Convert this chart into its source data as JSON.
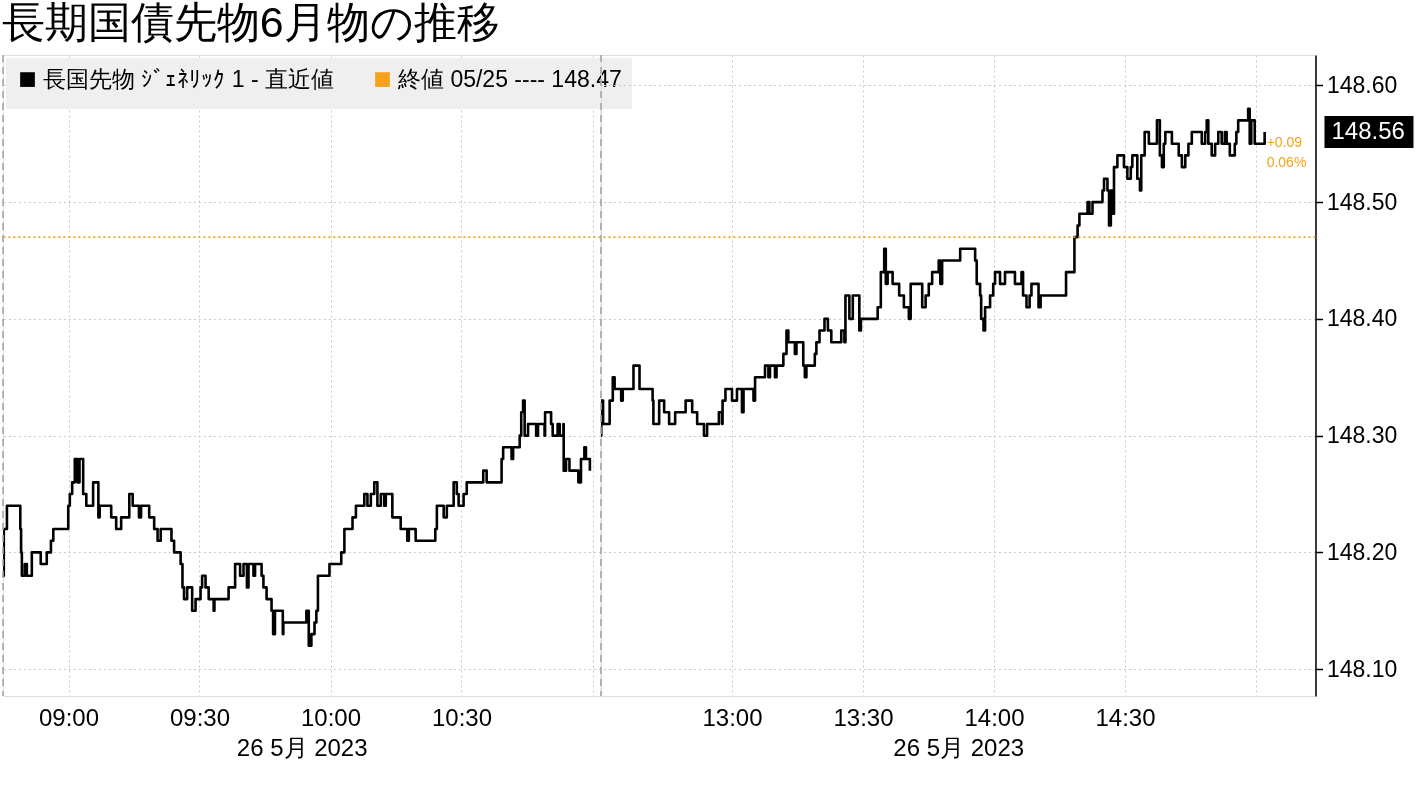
{
  "chart_data": [
    {
      "type": "step",
      "title": "長期国債先物6月物の推移",
      "xlabel": "26 5月 2023",
      "xlim": [
        8.75,
        11.03
      ],
      "xticks": [
        {
          "value": 9,
          "label": "09:00"
        },
        {
          "value": 9.5,
          "label": "09:30"
        },
        {
          "value": 10,
          "label": "10:00"
        },
        {
          "value": 10.5,
          "label": "10:30"
        },
        {
          "value": 11,
          "label": null
        }
      ],
      "ylim": [
        148.077,
        148.626
      ],
      "yticks": [
        148.1,
        148.2,
        148.3,
        148.4,
        148.5,
        148.6
      ],
      "tick_labels": "x",
      "grid": true,
      "legend": "top left",
      "line_style": "solid",
      "series": [
        {
          "name": "長国先物 ｼﾞｪﾈﾘｯｸ 1 - 直近値",
          "color": "#000000",
          "x": [
            8.75,
            8.753,
            8.765,
            8.816,
            8.819,
            8.822,
            8.833,
            8.841,
            8.86,
            8.894,
            8.917,
            8.933,
            8.942,
            8.999,
            9.005,
            9.014,
            9.024,
            9.034,
            9.042,
            9.056,
            9.068,
            9.094,
            9.114,
            9.119,
            9.163,
            9.182,
            9.201,
            9.232,
            9.245,
            9.269,
            9.277,
            9.308,
            9.327,
            9.34,
            9.352,
            9.393,
            9.403,
            9.428,
            9.435,
            9.441,
            9.453,
            9.472,
            9.485,
            9.504,
            9.51,
            9.523,
            9.535,
            9.554,
            9.557,
            9.611,
            9.636,
            9.655,
            9.668,
            9.681,
            9.687,
            9.706,
            9.712,
            9.737,
            9.744,
            9.756,
            9.775,
            9.781,
            9.788,
            9.818,
            9.82,
            9.908,
            9.917,
            9.927,
            9.939,
            9.946,
            9.952,
            9.996,
            10.041,
            10.053,
            10.084,
            10.097,
            10.129,
            10.141,
            10.154,
            10.167,
            10.179,
            10.192,
            10.205,
            10.211,
            10.236,
            10.268,
            10.293,
            10.299,
            10.325,
            10.4,
            10.406,
            10.432,
            10.444,
            10.47,
            10.482,
            10.489,
            10.508,
            10.52,
            10.583,
            10.596,
            10.653,
            10.659,
            10.691,
            10.697,
            10.722,
            10.728,
            10.735,
            10.741,
            10.754,
            10.785,
            10.792,
            10.817,
            10.819,
            10.842,
            10.848,
            10.867,
            10.875,
            10.889,
            10.89,
            10.899,
            10.912,
            10.946,
            10.956,
            10.969,
            10.975,
            10.99
          ],
          "values": [
            148.18,
            148.22,
            148.24,
            148.22,
            148.2,
            148.18,
            148.19,
            148.18,
            148.2,
            148.19,
            148.2,
            148.21,
            148.22,
            148.24,
            148.25,
            148.26,
            148.28,
            148.26,
            148.28,
            148.25,
            148.24,
            148.26,
            148.23,
            148.24,
            148.23,
            148.22,
            148.23,
            148.25,
            148.24,
            148.23,
            148.24,
            148.23,
            148.22,
            148.21,
            148.22,
            148.21,
            148.2,
            148.19,
            148.17,
            148.16,
            148.17,
            148.15,
            148.16,
            148.17,
            148.18,
            148.17,
            148.16,
            148.15,
            148.16,
            148.17,
            148.19,
            148.18,
            148.19,
            148.17,
            148.19,
            148.18,
            148.19,
            148.18,
            148.17,
            148.16,
            148.15,
            148.13,
            148.15,
            148.13,
            148.14,
            148.15,
            148.12,
            148.13,
            148.14,
            148.15,
            148.18,
            148.19,
            148.2,
            148.22,
            148.23,
            148.24,
            148.25,
            148.24,
            148.25,
            148.26,
            148.24,
            148.25,
            148.24,
            148.25,
            148.23,
            148.22,
            148.21,
            148.22,
            148.21,
            148.22,
            148.24,
            148.23,
            148.24,
            148.26,
            148.25,
            148.24,
            148.25,
            148.26,
            148.27,
            148.26,
            148.28,
            148.29,
            148.28,
            148.29,
            148.3,
            148.32,
            148.33,
            148.3,
            148.31,
            148.3,
            148.31,
            148.3,
            148.32,
            148.31,
            148.3,
            148.31,
            148.3,
            148.31,
            148.27,
            148.28,
            148.27,
            148.26,
            148.28,
            148.29,
            148.28,
            148.27
          ]
        }
      ],
      "ref_lines": [
        {
          "axis": "y",
          "value": 148.47,
          "label": "終値 05/25 ---- 148.47",
          "color": "#f5a11c",
          "line_style": "dotted"
        },
        {
          "axis": "x",
          "value": 8.75,
          "color": "#a6a6a6",
          "line_style": "dashed"
        }
      ]
    },
    {
      "type": "step",
      "xlabel": "26 5月 2023",
      "xlim": [
        12.5,
        15.227
      ],
      "xticks": [
        {
          "value": 13,
          "label": "13:00"
        },
        {
          "value": 13.5,
          "label": "13:30"
        },
        {
          "value": 14,
          "label": "14:00"
        },
        {
          "value": 14.5,
          "label": "14:30"
        },
        {
          "value": 15,
          "label": null
        }
      ],
      "ylim": [
        148.077,
        148.626
      ],
      "yticks": [
        {
          "value": 148.1,
          "label": "148.10"
        },
        {
          "value": 148.2,
          "label": "148.20"
        },
        {
          "value": 148.3,
          "label": "148.30"
        },
        {
          "value": 148.4,
          "label": "148.40"
        },
        {
          "value": 148.5,
          "label": "148.50"
        },
        {
          "value": 148.6,
          "label": "148.60"
        }
      ],
      "grid": true,
      "line_style": "solid",
      "series": [
        {
          "color": "#000000",
          "x": [
            12.5,
            12.501,
            12.508,
            12.533,
            12.545,
            12.552,
            12.577,
            12.583,
            12.624,
            12.647,
            12.697,
            12.7,
            12.722,
            12.741,
            12.76,
            12.783,
            12.823,
            12.848,
            12.867,
            12.893,
            12.905,
            12.95,
            12.962,
            12.964,
            12.975,
            13.0,
            13.019,
            13.038,
            13.044,
            13.082,
            13.088,
            13.126,
            13.139,
            13.145,
            13.164,
            13.17,
            13.196,
            13.208,
            13.215,
            13.24,
            13.246,
            13.272,
            13.278,
            13.284,
            13.316,
            13.322,
            13.334,
            13.353,
            13.366,
            13.379,
            13.417,
            13.429,
            13.433,
            13.448,
            13.461,
            13.486,
            13.492,
            13.556,
            13.568,
            13.581,
            13.587,
            13.594,
            13.613,
            13.638,
            13.656,
            13.675,
            13.682,
            13.726,
            13.739,
            13.751,
            13.764,
            13.789,
            13.795,
            13.802,
            13.871,
            13.928,
            13.934,
            13.947,
            13.951,
            13.96,
            13.966,
            13.985,
            13.997,
            14.004,
            14.023,
            14.042,
            14.08,
            14.105,
            14.111,
            14.124,
            14.136,
            14.143,
            14.17,
            14.178,
            14.275,
            14.307,
            14.319,
            14.326,
            14.357,
            14.364,
            14.376,
            14.414,
            14.42,
            14.433,
            14.439,
            14.446,
            14.452,
            14.458,
            14.471,
            14.496,
            14.509,
            14.522,
            14.528,
            14.547,
            14.557,
            14.562,
            14.575,
            14.591,
            14.622,
            14.633,
            14.641,
            14.648,
            14.654,
            14.679,
            14.705,
            14.717,
            14.73,
            14.742,
            14.755,
            14.793,
            14.806,
            14.812,
            14.818,
            14.831,
            14.844,
            14.856,
            14.869,
            14.881,
            14.888,
            14.9,
            14.919,
            14.925,
            14.932,
            14.97,
            14.976,
            14.982,
            14.995,
            15.033
          ],
          "values": [
            148.3,
            148.33,
            148.31,
            148.33,
            148.35,
            148.34,
            148.33,
            148.34,
            148.36,
            148.34,
            148.33,
            148.31,
            148.33,
            148.32,
            148.31,
            148.32,
            148.33,
            148.32,
            148.31,
            148.3,
            148.31,
            148.32,
            148.31,
            148.33,
            148.34,
            148.33,
            148.34,
            148.32,
            148.34,
            148.33,
            148.35,
            148.36,
            148.35,
            148.36,
            148.35,
            148.36,
            148.37,
            148.39,
            148.38,
            148.37,
            148.38,
            148.36,
            148.35,
            148.36,
            148.37,
            148.38,
            148.39,
            148.4,
            148.39,
            148.38,
            148.39,
            148.38,
            148.42,
            148.4,
            148.42,
            148.39,
            148.4,
            148.41,
            148.44,
            148.46,
            148.43,
            148.44,
            148.43,
            148.42,
            148.41,
            148.4,
            148.43,
            148.41,
            148.42,
            148.43,
            148.44,
            148.45,
            148.43,
            148.45,
            148.46,
            148.45,
            148.43,
            148.42,
            148.4,
            148.39,
            148.41,
            148.42,
            148.43,
            148.44,
            148.43,
            148.44,
            148.43,
            148.44,
            148.42,
            148.41,
            148.42,
            148.43,
            148.41,
            148.42,
            148.44,
            148.47,
            148.48,
            148.49,
            148.5,
            148.49,
            148.5,
            148.51,
            148.52,
            148.51,
            148.48,
            148.51,
            148.49,
            148.53,
            148.54,
            148.53,
            148.52,
            148.53,
            148.54,
            148.52,
            148.51,
            148.54,
            148.56,
            148.55,
            148.57,
            148.54,
            148.53,
            148.55,
            148.56,
            148.55,
            148.54,
            148.53,
            148.54,
            148.55,
            148.56,
            148.55,
            148.56,
            148.57,
            148.55,
            148.54,
            148.55,
            148.56,
            148.55,
            148.56,
            148.55,
            148.54,
            148.55,
            148.56,
            148.57,
            148.58,
            148.55,
            148.57,
            148.55,
            148.56
          ]
        }
      ],
      "ref_lines": [
        {
          "axis": "y",
          "value": 148.47,
          "color": "#f5a11c",
          "line_style": "dotted"
        },
        {
          "axis": "x",
          "value": 12.5,
          "color": "#a6a6a6",
          "line_style": "dashed"
        }
      ],
      "annotations": [
        "148.56",
        "+0.09",
        "0.06%"
      ]
    }
  ]
}
